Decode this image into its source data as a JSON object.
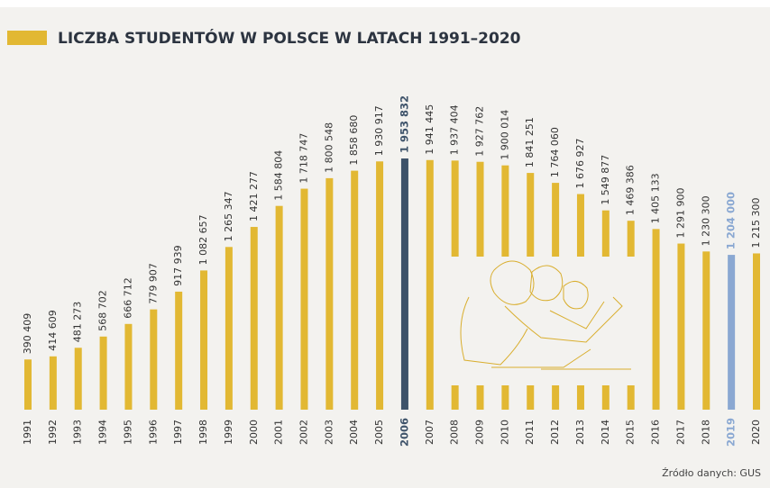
{
  "chart_data": {
    "type": "bar",
    "title": "LICZBA STUDENTÓW W POLSCE W LATACH 1991–2020",
    "source": "Źródło danych: GUS",
    "categories": [
      "1991",
      "1992",
      "1993",
      "1994",
      "1995",
      "1996",
      "1997",
      "1998",
      "1999",
      "2000",
      "2001",
      "2002",
      "2003",
      "2004",
      "2005",
      "2006",
      "2007",
      "2008",
      "2009",
      "2010",
      "2011",
      "2012",
      "2013",
      "2014",
      "2015",
      "2016",
      "2017",
      "2018",
      "2019",
      "2020"
    ],
    "values": [
      390409,
      414609,
      481273,
      568702,
      666712,
      779907,
      917939,
      1082657,
      1265347,
      1421277,
      1584804,
      1718747,
      1800548,
      1858680,
      1930917,
      1953832,
      1941445,
      1937404,
      1927762,
      1900014,
      1841251,
      1764060,
      1676927,
      1549877,
      1469386,
      1405133,
      1291900,
      1230300,
      1204000,
      1215300
    ],
    "value_labels": [
      "390 409",
      "414 609",
      "481 273",
      "568 702",
      "666 712",
      "779 907",
      "917 939",
      "1 082 657",
      "1 265 347",
      "1 421 277",
      "1 584 804",
      "1 718 747",
      "1 800 548",
      "1 858 680",
      "1 930 917",
      "1 953 832",
      "1 941 445",
      "1 937 404",
      "1 927 762",
      "1 900 014",
      "1 841 251",
      "1 764 060",
      "1 676 927",
      "1 549 877",
      "1 469 386",
      "1 405 133",
      "1 291 900",
      "1 230 300",
      "1 204 000",
      "1 215 300"
    ],
    "colors": [
      "#e2b833",
      "#e2b833",
      "#e2b833",
      "#e2b833",
      "#e2b833",
      "#e2b833",
      "#e2b833",
      "#e2b833",
      "#e2b833",
      "#e2b833",
      "#e2b833",
      "#e2b833",
      "#e2b833",
      "#e2b833",
      "#e2b833",
      "#3e536a",
      "#e2b833",
      "#e2b833",
      "#e2b833",
      "#e2b833",
      "#e2b833",
      "#e2b833",
      "#e2b833",
      "#e2b833",
      "#e2b833",
      "#e2b833",
      "#e2b833",
      "#e2b833",
      "#8aa8d2",
      "#e2b833"
    ]
  }
}
